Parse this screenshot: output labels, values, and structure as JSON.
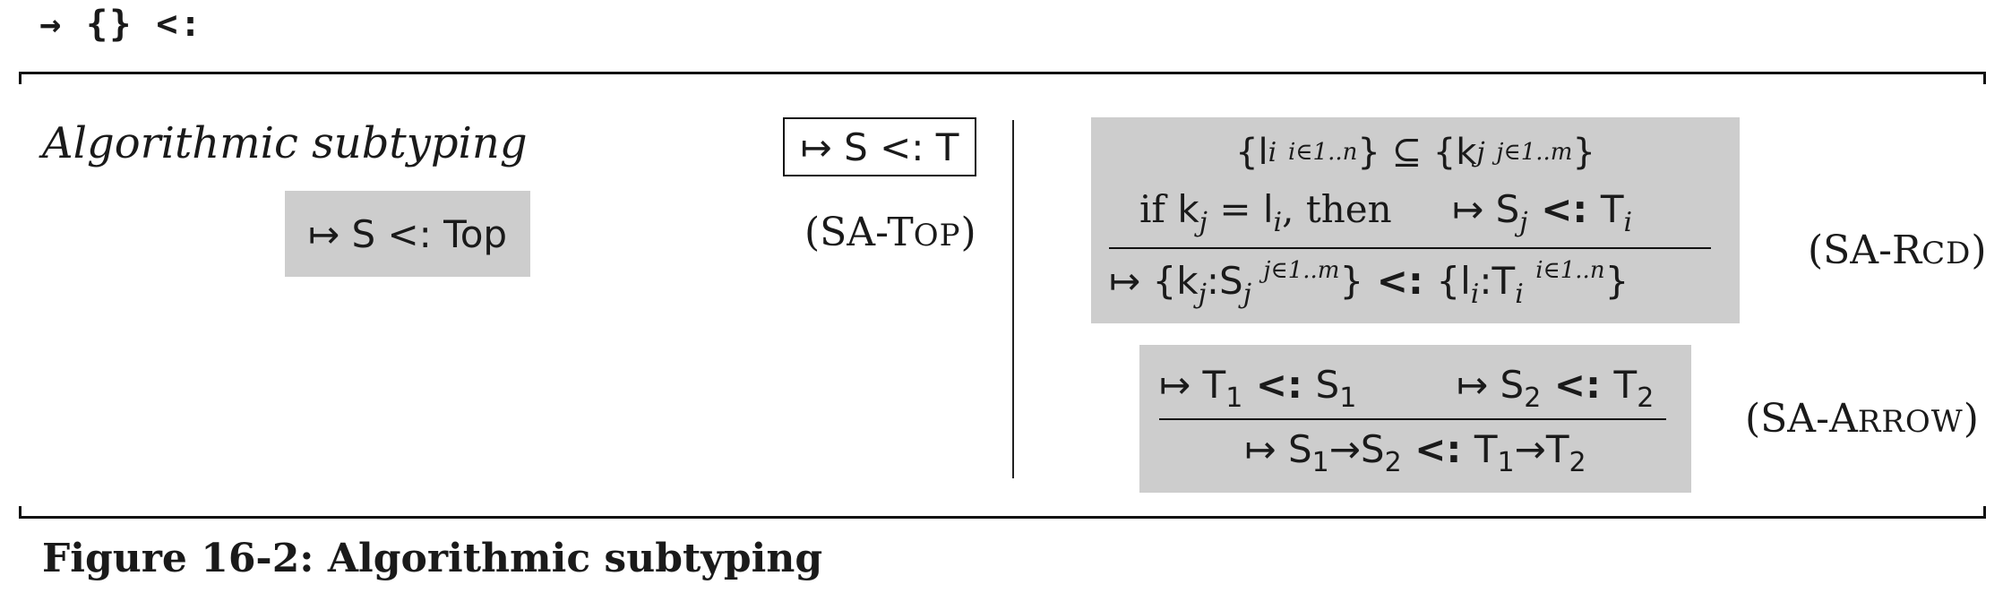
{
  "header": {
    "symbols": "→ {} <:"
  },
  "section": {
    "title": "Algorithmic subtyping",
    "judgment_form": "↦ S <: T"
  },
  "rules": [
    {
      "name_open": "(SA-",
      "name_first": "T",
      "name_rest": "OP",
      "name_close": ")",
      "conclusion": "↦ S <: Top"
    },
    {
      "name_open": "(SA-",
      "name_first": "R",
      "name_rest": "CD",
      "name_close": ")",
      "premise1": "{l_i i∈1..n} ⊆ {k_j j∈1..m}",
      "premise2_text": "if k_j = l_i, then",
      "premise2_judgment": "↦ S_j <: T_i",
      "conclusion": "↦ {k_j:S_j j∈1..m} <: {l_i:T_i i∈1..n}"
    },
    {
      "name_open": "(SA-",
      "name_first": "A",
      "name_rest": "RROW",
      "name_close": ")",
      "premise1": "↦ T1 <: S1",
      "premise2": "↦ S2 <: T2",
      "conclusion": "↦ S1→S2 <: T1→T2"
    }
  ],
  "caption": "Figure 16-2: Algorithmic subtyping"
}
